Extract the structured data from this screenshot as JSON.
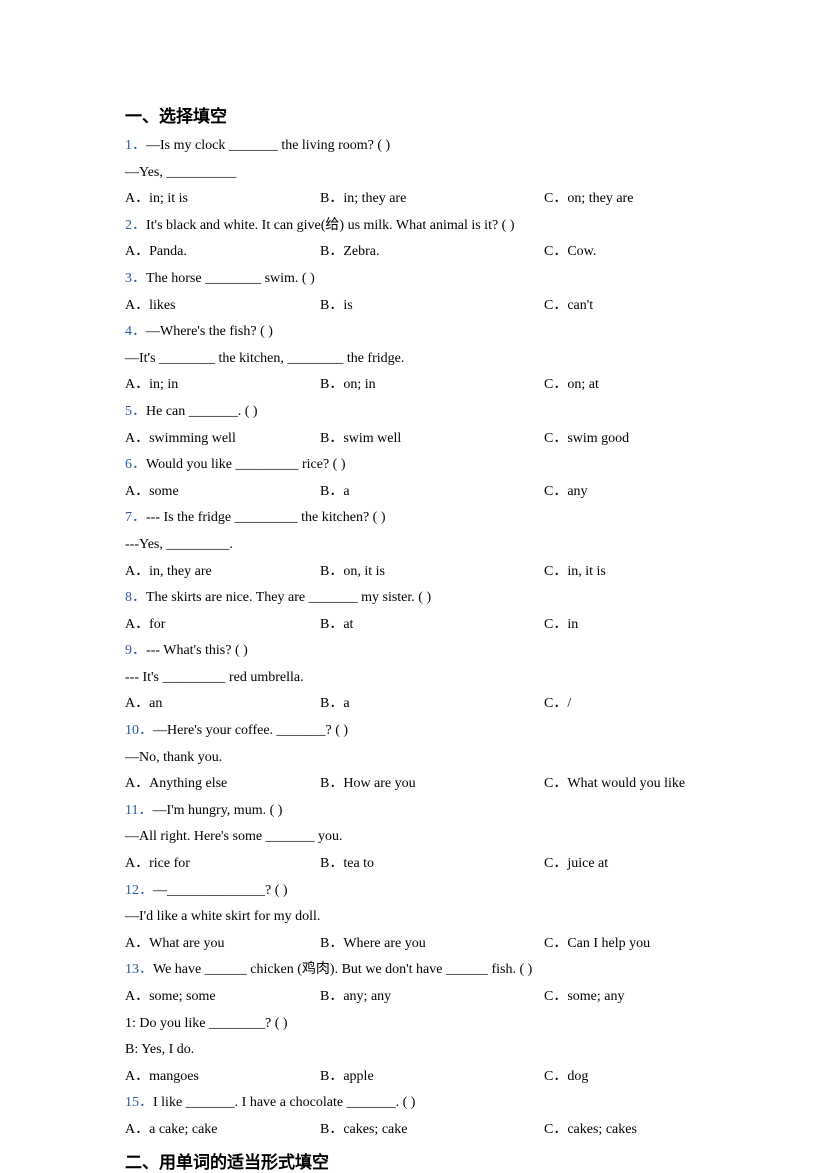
{
  "section1_title": "一、选择填空",
  "section2_title": "二、用单词的适当形式填空",
  "questions": [
    {
      "num": "1．",
      "q": "—Is my clock _______ the living room? (    )",
      "extra": "—Yes, __________",
      "a": "A．in; it is",
      "b": "B．in; they are",
      "c": "C．on; they are"
    },
    {
      "num": "2．",
      "q": "It's black and white. It can give(给) us milk. What animal is it? (    )",
      "a": "A．Panda.",
      "b": "B．Zebra.",
      "c": "C．Cow."
    },
    {
      "num": "3．",
      "q": "The horse ________ swim. (    )",
      "a": "A．likes",
      "b": "B．is",
      "c": "C．can't"
    },
    {
      "num": "4．",
      "q": "—Where's the fish? (    )",
      "extra": "—It's ________ the kitchen, ________ the fridge.",
      "a": "A．in; in",
      "b": "B．on; in",
      "c": "C．on; at"
    },
    {
      "num": "5．",
      "q": "He can _______. (    )",
      "a": "A．swimming well",
      "b": "B．swim well",
      "c": "C．swim good"
    },
    {
      "num": "6．",
      "q": "Would you like _________ rice? (     )",
      "a": "A．some",
      "b": "B．a",
      "c": "C．any"
    },
    {
      "num": "7．",
      "q": "--- Is the fridge _________ the kitchen? (    )",
      "extra": "---Yes, _________.",
      "a": "A．in, they are",
      "b": "B．on, it is",
      "c": "C．in, it is"
    },
    {
      "num": "8．",
      "q": "The skirts are nice. They are _______ my sister. (    )",
      "a": "A．for",
      "b": "B．at",
      "c": "C．in"
    },
    {
      "num": "9．",
      "q": "--- What's this? (     )",
      "extra": "--- It's _________ red umbrella.",
      "a": "A．an",
      "b": "B．a",
      "c": "C．/"
    },
    {
      "num": "10．",
      "q": "—Here's your coffee. _______? (    )",
      "extra": "—No, thank you.",
      "a": "A．Anything else",
      "b": "B．How are you",
      "c": "C．What would you like"
    },
    {
      "num": "11．",
      "q": "—I'm hungry, mum. (    )",
      "extra": "—All right. Here's some _______ you.",
      "a": "A．rice for",
      "b": "B．tea to",
      "c": "C．juice at"
    },
    {
      "num": "12．",
      "q": "—______________? (    )",
      "extra": "—I'd like a white skirt for my doll.",
      "a": "A．What are you",
      "b": "B．Where are you",
      "c": "C．Can I help you"
    },
    {
      "num": "13．",
      "q": "We have ______ chicken (鸡肉). But we don't have ______ fish. (    )",
      "a": "A．some; some",
      "b": "B．any; any",
      "c": "C．some; any"
    },
    {
      "q2line1": "1: Do you like ________? (     )",
      "q2line2": "B: Yes, I do.",
      "a": "A．mangoes",
      "b": "B．apple",
      "c": "C．dog"
    },
    {
      "num": "15．",
      "q": "I like _______. I have a chocolate _______. (    )",
      "a": "A．a cake; cake",
      "b": "B．cakes; cake",
      "c": "C．cakes; cakes"
    }
  ]
}
